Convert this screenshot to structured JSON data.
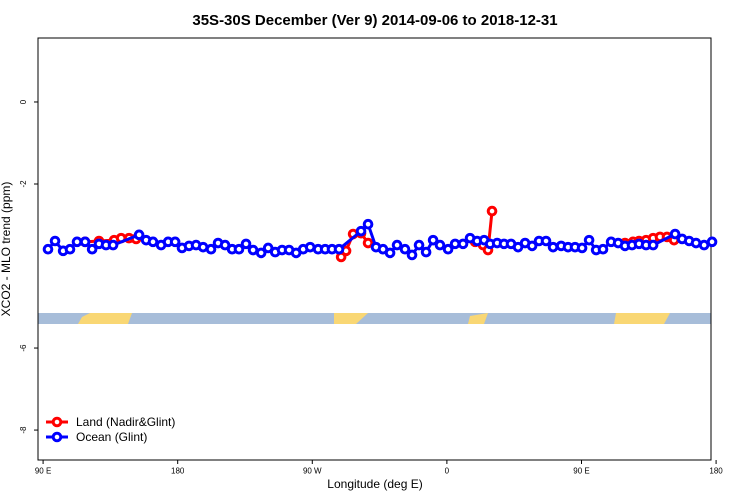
{
  "chart_data": {
    "type": "line",
    "title": "35S-30S December (Ver 9)   2014-09-06 to 2018-12-31",
    "x_label": "Longitude (deg E)",
    "y_label": "XCO2 - MLO trend (ppm)",
    "xlim": [
      86.6,
      536.6
    ],
    "ylim": [
      -8.73,
      1.56
    ],
    "xticks": [
      {
        "value": 90,
        "label": "90 E"
      },
      180,
      {
        "value": 270,
        "label": "90 W"
      },
      {
        "value": 360,
        "label": "0"
      },
      {
        "value": 450,
        "label": "90 E"
      },
      {
        "value": 540,
        "label": "180"
      }
    ],
    "yticks": [
      0,
      -2,
      -6,
      -8
    ],
    "legend": "bottom-left",
    "series": [
      {
        "name": "Land (Nadir&Glint)",
        "color": "#ff0000",
        "x": [
          118.1,
          127.4,
          137.5,
          142.2,
          147.5,
          152.2,
          200,
          289.3,
          292.6,
          297.3,
          302.6,
          307.3,
          340,
          378.9,
          384.2,
          387.5,
          390.2,
          440,
          479.1,
          484.5,
          488.5,
          493.2,
          497.9,
          502.5,
          507.2,
          511.9
        ],
        "values": [
          -3.41,
          -3.39,
          -3.37,
          -3.32,
          -3.32,
          -3.34,
          null,
          -3.78,
          -3.63,
          -3.22,
          -3.2,
          -3.44,
          null,
          -3.41,
          -3.49,
          -3.61,
          -2.66,
          null,
          -3.44,
          -3.41,
          -3.39,
          -3.37,
          -3.32,
          -3.29,
          -3.29,
          -3.37
        ]
      },
      {
        "name": "Ocean (Glint)",
        "color": "#0000ff",
        "x": [
          93.3,
          98,
          103.4,
          108,
          112.7,
          118.1,
          122.8,
          127.4,
          132.1,
          136.8,
          154.2,
          158.9,
          163.5,
          168.9,
          173.6,
          178.3,
          182.9,
          187.6,
          192.3,
          197,
          202.3,
          207,
          211.7,
          216.4,
          221,
          225.7,
          230.4,
          235.8,
          240.5,
          245.2,
          249.8,
          254.5,
          259.2,
          263.9,
          268.6,
          273.9,
          278.6,
          283.2,
          287.9,
          302.6,
          307.3,
          312.6,
          317.3,
          322,
          326.7,
          332,
          336.7,
          341.4,
          346.1,
          350.8,
          355.4,
          360.8,
          365.5,
          370.8,
          375.5,
          380.2,
          384.9,
          388.9,
          393.6,
          398.2,
          402.9,
          407.6,
          412.3,
          417,
          421.6,
          426.3,
          431,
          436.4,
          441,
          445.7,
          450.4,
          455.1,
          459.8,
          464.4,
          469.8,
          474.5,
          479.1,
          483.8,
          488.5,
          493.2,
          497.9,
          512.6,
          517.3,
          522,
          526.6,
          532,
          537.3
        ],
        "values": [
          -3.59,
          -3.39,
          -3.63,
          -3.59,
          -3.41,
          -3.41,
          -3.59,
          -3.46,
          -3.49,
          -3.49,
          -3.24,
          -3.37,
          -3.41,
          -3.49,
          -3.41,
          -3.41,
          -3.56,
          -3.51,
          -3.49,
          -3.54,
          -3.59,
          -3.44,
          -3.49,
          -3.59,
          -3.59,
          -3.46,
          -3.61,
          -3.68,
          -3.56,
          -3.66,
          -3.61,
          -3.61,
          -3.68,
          -3.59,
          -3.54,
          -3.59,
          -3.59,
          -3.59,
          -3.59,
          -3.15,
          -2.98,
          -3.54,
          -3.59,
          -3.68,
          -3.49,
          -3.59,
          -3.73,
          -3.49,
          -3.66,
          -3.37,
          -3.49,
          -3.59,
          -3.46,
          -3.46,
          -3.32,
          -3.39,
          -3.37,
          -3.46,
          -3.44,
          -3.46,
          -3.46,
          -3.54,
          -3.44,
          -3.51,
          -3.39,
          -3.39,
          -3.54,
          -3.51,
          -3.54,
          -3.54,
          -3.56,
          -3.37,
          -3.61,
          -3.59,
          -3.41,
          -3.44,
          -3.51,
          -3.49,
          -3.46,
          -3.49,
          -3.49,
          -3.22,
          -3.34,
          -3.39,
          -3.44,
          -3.49,
          -3.41
        ]
      }
    ]
  }
}
